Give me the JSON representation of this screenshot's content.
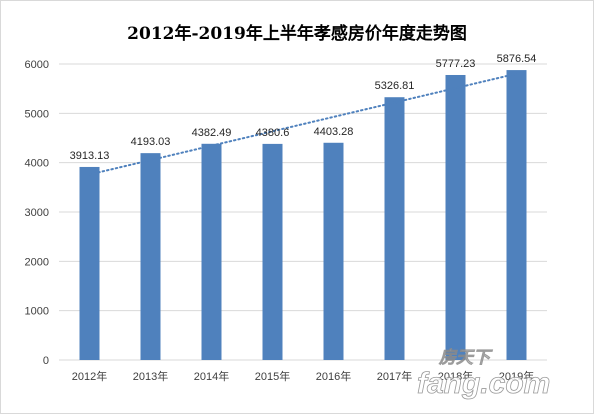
{
  "chart_data": {
    "type": "bar",
    "title": "2012年-2019年上半年孝感房价年度走势图",
    "categories": [
      "2012年",
      "2013年",
      "2014年",
      "2015年",
      "2016年",
      "2017年",
      "2018年",
      "2019年"
    ],
    "values": [
      3913.13,
      4193.03,
      4382.49,
      4380.6,
      4403.28,
      5326.81,
      5777.23,
      5876.54
    ],
    "data_labels": [
      "3913.13",
      "4193.03",
      "4382.49",
      "4380.6",
      "4403.28",
      "5326.81",
      "5777.23",
      "5876.54"
    ],
    "ylim": [
      0,
      6000
    ],
    "yticks": [
      0,
      1000,
      2000,
      3000,
      4000,
      5000,
      6000
    ],
    "grid": true,
    "trendline": {
      "type": "linear",
      "style": "dotted"
    },
    "colors": {
      "bar": "#4f81bd",
      "trend": "#4f81bd",
      "grid": "#d9d9d9"
    }
  },
  "watermark": {
    "text_cn": "房天下",
    "text_en": "fang.com"
  }
}
